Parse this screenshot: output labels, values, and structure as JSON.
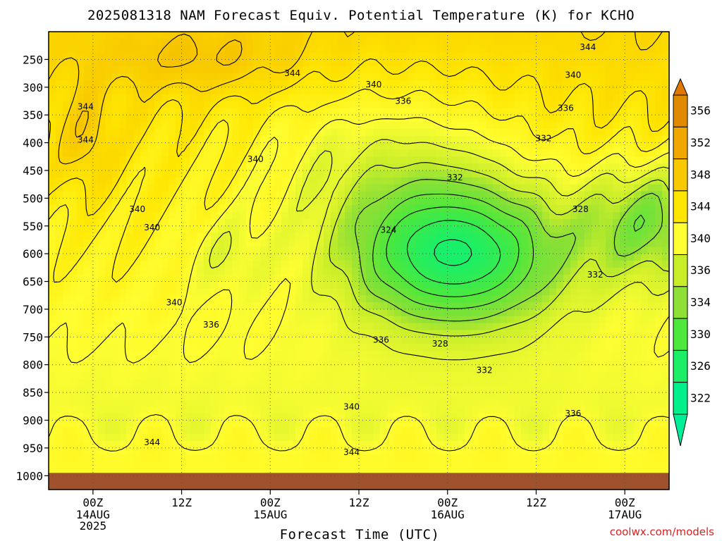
{
  "title": "2025081318 NAM Forecast Equiv. Potential Temperature (K) for KCHO",
  "xlabel": "Forecast Time (UTC)",
  "credit": "coolwx.com/models",
  "colors": {
    "ground": "#a0522d",
    "frame": "#000000",
    "grid": "#555555",
    "contour": "#000000",
    "credit": "#e02020"
  },
  "chart_data": {
    "type": "heatmap",
    "title": "2025081318 NAM Forecast Equiv. Potential Temperature (K) for KCHO",
    "xlabel": "Forecast Time (UTC)",
    "ylabel": "",
    "y_axis": "pressure (hPa), inverted",
    "x_ticks": [
      {
        "label": "00Z",
        "sub": [
          "14AUG",
          "2025"
        ]
      },
      {
        "label": "12Z",
        "sub": []
      },
      {
        "label": "00Z",
        "sub": [
          "15AUG"
        ]
      },
      {
        "label": "12Z",
        "sub": []
      },
      {
        "label": "00Z",
        "sub": [
          "16AUG"
        ]
      },
      {
        "label": "12Z",
        "sub": []
      },
      {
        "label": "00Z",
        "sub": [
          "17AUG"
        ]
      }
    ],
    "x_tick_hours": [
      6,
      18,
      30,
      42,
      54,
      66,
      78
    ],
    "x_range_hours": [
      0,
      84
    ],
    "y_ticks": [
      250,
      300,
      350,
      400,
      450,
      500,
      550,
      600,
      650,
      700,
      750,
      800,
      850,
      900,
      950,
      1000
    ],
    "y_range_hpa": [
      200,
      1025
    ],
    "colorbar": {
      "labels": [
        356,
        352,
        348,
        344,
        340,
        336,
        334,
        330,
        326,
        322
      ],
      "colors": [
        "#e08a00",
        "#f0a800",
        "#f8c800",
        "#ffe600",
        "#ffff33",
        "#c8ee2a",
        "#8ee036",
        "#4ee83c",
        "#1cef66",
        "#00f08c"
      ],
      "top_arrow_color": "#e07800",
      "bottom_arrow_color": "#00f09a"
    },
    "contour_labels": [
      {
        "value": 344,
        "hour": 73,
        "hpa": 228
      },
      {
        "value": 340,
        "hour": 71,
        "hpa": 278
      },
      {
        "value": 344,
        "hour": 33,
        "hpa": 275
      },
      {
        "value": 340,
        "hour": 44,
        "hpa": 295
      },
      {
        "value": 336,
        "hour": 48,
        "hpa": 325
      },
      {
        "value": 336,
        "hour": 70,
        "hpa": 338
      },
      {
        "value": 344,
        "hour": 5,
        "hpa": 335
      },
      {
        "value": 344,
        "hour": 5,
        "hpa": 395
      },
      {
        "value": 332,
        "hour": 67,
        "hpa": 392
      },
      {
        "value": 340,
        "hour": 28,
        "hpa": 430
      },
      {
        "value": 332,
        "hour": 55,
        "hpa": 463
      },
      {
        "value": 340,
        "hour": 12,
        "hpa": 520
      },
      {
        "value": 340,
        "hour": 14,
        "hpa": 553
      },
      {
        "value": 328,
        "hour": 72,
        "hpa": 520
      },
      {
        "value": 324,
        "hour": 46,
        "hpa": 557
      },
      {
        "value": 332,
        "hour": 74,
        "hpa": 638
      },
      {
        "value": 340,
        "hour": 17,
        "hpa": 688
      },
      {
        "value": 336,
        "hour": 22,
        "hpa": 728
      },
      {
        "value": 336,
        "hour": 45,
        "hpa": 755
      },
      {
        "value": 328,
        "hour": 53,
        "hpa": 762
      },
      {
        "value": 332,
        "hour": 59,
        "hpa": 810
      },
      {
        "value": 340,
        "hour": 41,
        "hpa": 876
      },
      {
        "value": 336,
        "hour": 71,
        "hpa": 888
      },
      {
        "value": 344,
        "hour": 14,
        "hpa": 940
      },
      {
        "value": 344,
        "hour": 41,
        "hpa": 958
      }
    ],
    "contour_levels": [
      324,
      326,
      328,
      330,
      332,
      334,
      336,
      338,
      340,
      342,
      344,
      346,
      348,
      350
    ],
    "field_model": "approximate reconstruction of theta-e (K) by time and pressure",
    "grid": true
  }
}
